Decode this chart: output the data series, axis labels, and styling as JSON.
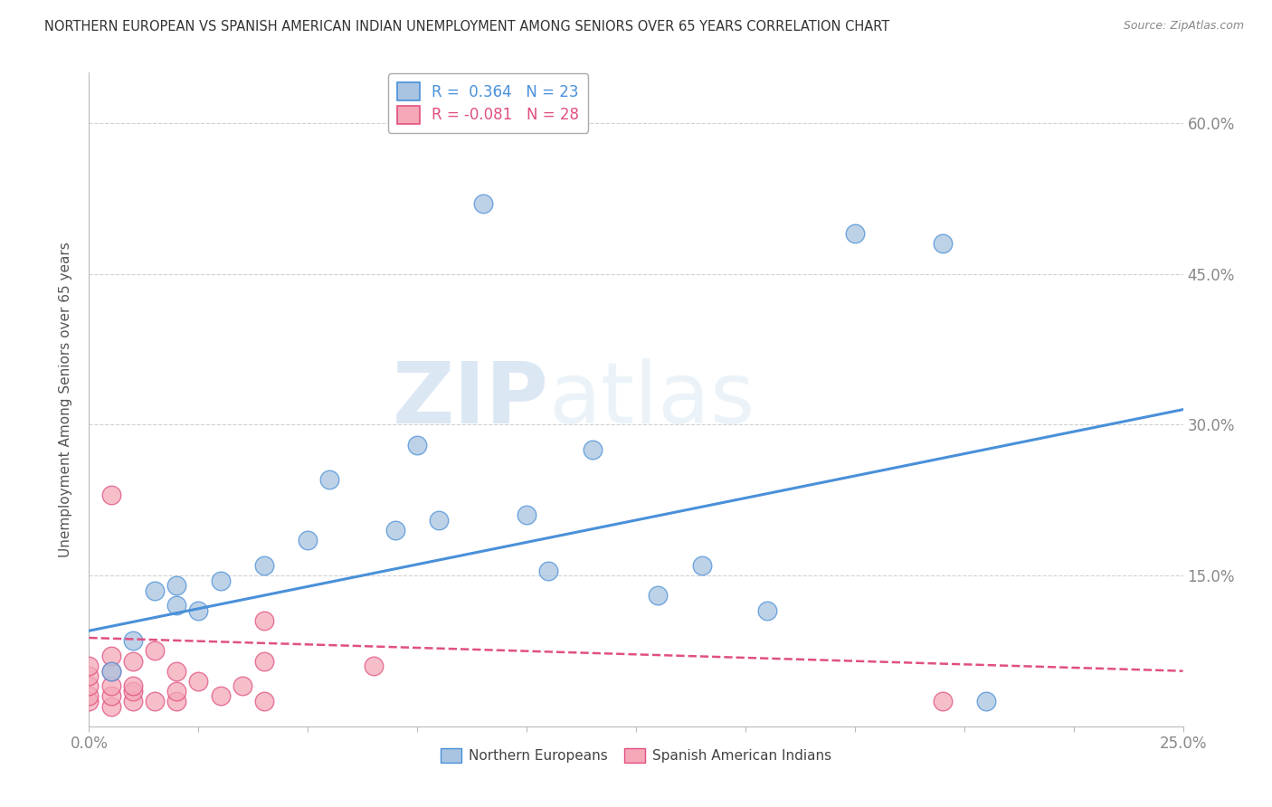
{
  "title": "NORTHERN EUROPEAN VS SPANISH AMERICAN INDIAN UNEMPLOYMENT AMONG SENIORS OVER 65 YEARS CORRELATION CHART",
  "source": "Source: ZipAtlas.com",
  "ylabel": "Unemployment Among Seniors over 65 years",
  "xlim": [
    0.0,
    0.25
  ],
  "ylim": [
    0.0,
    0.65
  ],
  "xticks": [
    0.0,
    0.025,
    0.05,
    0.075,
    0.1,
    0.125,
    0.15,
    0.175,
    0.2,
    0.225,
    0.25
  ],
  "ytick_vals": [
    0.0,
    0.15,
    0.3,
    0.45,
    0.6
  ],
  "ytick_labels": [
    "",
    "15.0%",
    "30.0%",
    "45.0%",
    "60.0%"
  ],
  "blue_R": 0.364,
  "blue_N": 23,
  "pink_R": -0.081,
  "pink_N": 28,
  "blue_scatter_x": [
    0.005,
    0.01,
    0.015,
    0.02,
    0.02,
    0.025,
    0.03,
    0.04,
    0.05,
    0.055,
    0.07,
    0.075,
    0.08,
    0.09,
    0.1,
    0.105,
    0.115,
    0.13,
    0.14,
    0.155,
    0.175,
    0.195,
    0.205
  ],
  "blue_scatter_y": [
    0.055,
    0.085,
    0.135,
    0.12,
    0.14,
    0.115,
    0.145,
    0.16,
    0.185,
    0.245,
    0.195,
    0.28,
    0.205,
    0.52,
    0.21,
    0.155,
    0.275,
    0.13,
    0.16,
    0.115,
    0.49,
    0.48,
    0.025
  ],
  "pink_scatter_x": [
    0.0,
    0.0,
    0.0,
    0.0,
    0.0,
    0.005,
    0.005,
    0.005,
    0.005,
    0.005,
    0.005,
    0.01,
    0.01,
    0.01,
    0.01,
    0.015,
    0.015,
    0.02,
    0.02,
    0.02,
    0.025,
    0.03,
    0.035,
    0.04,
    0.04,
    0.04,
    0.065,
    0.195
  ],
  "pink_scatter_y": [
    0.025,
    0.03,
    0.04,
    0.05,
    0.06,
    0.02,
    0.03,
    0.04,
    0.055,
    0.07,
    0.23,
    0.025,
    0.035,
    0.04,
    0.065,
    0.025,
    0.075,
    0.025,
    0.035,
    0.055,
    0.045,
    0.03,
    0.04,
    0.025,
    0.065,
    0.105,
    0.06,
    0.025
  ],
  "blue_line_x0": 0.0,
  "blue_line_y0": 0.095,
  "blue_line_x1": 0.25,
  "blue_line_y1": 0.315,
  "pink_line_x0": 0.0,
  "pink_line_y0": 0.088,
  "pink_line_x1": 0.25,
  "pink_line_y1": 0.055,
  "blue_color": "#a8c4e0",
  "pink_color": "#f4a8b8",
  "blue_line_color": "#4a90d9",
  "pink_line_color": "#e05080",
  "watermark_zip": "ZIP",
  "watermark_atlas": "atlas",
  "background_color": "#ffffff",
  "grid_color": "#cccccc",
  "title_color": "#333333",
  "axis_label_color": "#555555",
  "tick_color": "#888888"
}
